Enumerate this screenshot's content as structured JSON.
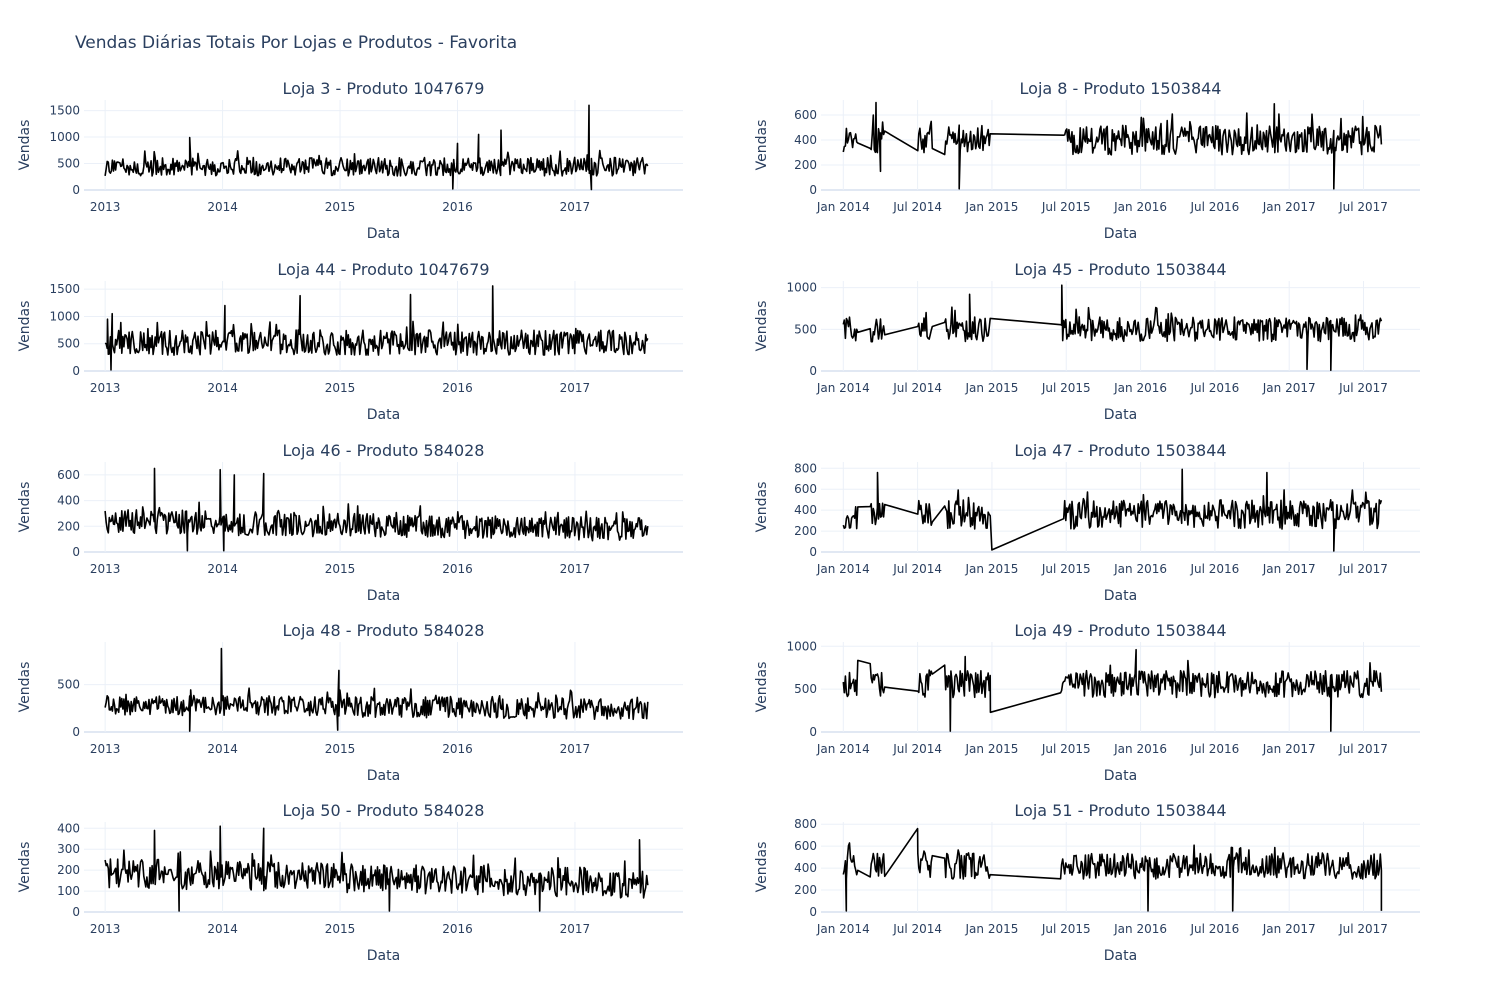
{
  "title": "Vendas Diárias Totais Por Lojas e Produtos - Favorita",
  "colors": {
    "line": "#000000",
    "grid": "#ebf0f8",
    "text": "#2a3f5f",
    "zeroline": "#e1e8f3"
  },
  "chart_data": [
    {
      "type": "line",
      "title": "Loja 3 - Produto 1047679",
      "xlabel": "Data",
      "ylabel": "Vendas",
      "xrange": [
        2012.82,
        2017.92
      ],
      "xticks": [
        2013,
        2014,
        2015,
        2016,
        2017
      ],
      "xticklabels": [
        "2013",
        "2014",
        "2015",
        "2016",
        "2017"
      ],
      "ylim": [
        0,
        1700
      ],
      "yticks": [
        0,
        500,
        1000,
        1500
      ],
      "series": [
        {
          "start": 2013.0,
          "end": 2017.62,
          "base": 440,
          "amp": 175,
          "min": 40,
          "seed": 3,
          "peaks": [
            [
              2017.12,
              1600
            ],
            [
              2016.37,
              1130
            ],
            [
              2016.18,
              1050
            ],
            [
              2013.72,
              990
            ],
            [
              2016.0,
              880
            ],
            [
              2015.96,
              20
            ],
            [
              2017.14,
              10
            ]
          ],
          "gaps": []
        }
      ]
    },
    {
      "type": "line",
      "title": "Loja 8 - Produto 1503844",
      "xlabel": "Data",
      "ylabel": "Vendas",
      "xrange": [
        2013.85,
        2017.88
      ],
      "xticks": [
        2014.0,
        2014.5,
        2015.0,
        2015.5,
        2016.0,
        2016.5,
        2017.0,
        2017.5
      ],
      "xticklabels": [
        "Jan 2014",
        "Jul 2014",
        "Jan 2015",
        "Jul 2015",
        "Jan 2016",
        "Jul 2016",
        "Jan 2017",
        "Jul 2017"
      ],
      "ylim": [
        0,
        720
      ],
      "yticks": [
        0,
        200,
        400,
        600
      ],
      "series": [
        {
          "start": 2014.0,
          "end": 2017.62,
          "base": 400,
          "amp": 120,
          "min": 150,
          "seed": 8,
          "peaks": [
            [
              2014.22,
              700
            ],
            [
              2016.9,
              690
            ],
            [
              2014.78,
              10
            ],
            [
              2017.3,
              10
            ],
            [
              2014.25,
              150
            ]
          ],
          "gaps": [
            [
              2014.1,
              2014.18
            ],
            [
              2014.28,
              2014.5
            ],
            [
              2014.6,
              2014.68
            ],
            [
              2014.99,
              2015.48
            ]
          ]
        }
      ]
    },
    {
      "type": "line",
      "title": "Loja 44 - Produto 1047679",
      "xlabel": "Data",
      "ylabel": "Vendas",
      "xrange": [
        2012.82,
        2017.92
      ],
      "xticks": [
        2013,
        2014,
        2015,
        2016,
        2017
      ],
      "xticklabels": [
        "2013",
        "2014",
        "2015",
        "2016",
        "2017"
      ],
      "ylim": [
        0,
        1650
      ],
      "yticks": [
        0,
        500,
        1000,
        1500
      ],
      "series": [
        {
          "start": 2013.0,
          "end": 2017.62,
          "base": 520,
          "amp": 230,
          "min": 60,
          "seed": 44,
          "peaks": [
            [
              2016.3,
              1560
            ],
            [
              2013.06,
              1050
            ],
            [
              2013.02,
              950
            ],
            [
              2014.02,
              1200
            ],
            [
              2014.66,
              1380
            ],
            [
              2015.6,
              1400
            ],
            [
              2013.05,
              20
            ]
          ],
          "gaps": []
        }
      ]
    },
    {
      "type": "line",
      "title": "Loja 45 - Produto 1503844",
      "xlabel": "Data",
      "ylabel": "Vendas",
      "xrange": [
        2013.85,
        2017.88
      ],
      "xticks": [
        2014.0,
        2014.5,
        2015.0,
        2015.5,
        2016.0,
        2016.5,
        2017.0,
        2017.5
      ],
      "xticklabels": [
        "Jan 2014",
        "Jul 2014",
        "Jan 2015",
        "Jul 2015",
        "Jan 2016",
        "Jul 2016",
        "Jan 2017",
        "Jul 2017"
      ],
      "ylim": [
        0,
        1080
      ],
      "yticks": [
        0,
        500,
        1000
      ],
      "series": [
        {
          "start": 2014.0,
          "end": 2017.62,
          "base": 500,
          "amp": 150,
          "min": 250,
          "seed": 45,
          "peaks": [
            [
              2015.47,
              1030
            ],
            [
              2014.85,
              920
            ],
            [
              2017.28,
              10
            ],
            [
              2017.12,
              20
            ]
          ],
          "gaps": [
            [
              2014.1,
              2014.18
            ],
            [
              2014.28,
              2014.5
            ],
            [
              2014.6,
              2014.68
            ],
            [
              2014.99,
              2015.46
            ]
          ]
        }
      ]
    },
    {
      "type": "line",
      "title": "Loja 46 - Produto 584028",
      "xlabel": "Data",
      "ylabel": "Vendas",
      "xrange": [
        2012.82,
        2017.92
      ],
      "xticks": [
        2013,
        2014,
        2015,
        2016,
        2017
      ],
      "xticklabels": [
        "2013",
        "2014",
        "2015",
        "2016",
        "2017"
      ],
      "ylim": [
        0,
        700
      ],
      "yticks": [
        0,
        200,
        400,
        600
      ],
      "series": [
        {
          "start": 2013.0,
          "end": 2017.62,
          "base": 240,
          "amp": 95,
          "min": 20,
          "seed": 46,
          "peaks": [
            [
              2013.42,
              650
            ],
            [
              2013.98,
              640
            ],
            [
              2014.1,
              600
            ],
            [
              2014.35,
              610
            ],
            [
              2013.7,
              10
            ],
            [
              2014.01,
              10
            ]
          ],
          "gaps": [],
          "trend": -70
        }
      ]
    },
    {
      "type": "line",
      "title": "Loja 47 - Produto 1503844",
      "xlabel": "Data",
      "ylabel": "Vendas",
      "xrange": [
        2013.85,
        2017.88
      ],
      "xticks": [
        2014.0,
        2014.5,
        2015.0,
        2015.5,
        2016.0,
        2016.5,
        2017.0,
        2017.5
      ],
      "xticklabels": [
        "Jan 2014",
        "Jul 2014",
        "Jan 2015",
        "Jul 2015",
        "Jan 2016",
        "Jul 2016",
        "Jan 2017",
        "Jul 2017"
      ],
      "ylim": [
        0,
        860
      ],
      "yticks": [
        0,
        200,
        400,
        600,
        800
      ],
      "series": [
        {
          "start": 2014.0,
          "end": 2017.62,
          "base": 360,
          "amp": 140,
          "min": 120,
          "seed": 47,
          "peaks": [
            [
              2016.28,
              790
            ],
            [
              2014.23,
              760
            ],
            [
              2016.85,
              760
            ],
            [
              2015.0,
              20
            ],
            [
              2017.3,
              10
            ]
          ],
          "gaps": [
            [
              2014.1,
              2014.18
            ],
            [
              2014.28,
              2014.5
            ],
            [
              2014.6,
              2014.68
            ],
            [
              2014.99,
              2015.48
            ]
          ]
        }
      ]
    },
    {
      "type": "line",
      "title": "Loja 48 - Produto 584028",
      "xlabel": "Data",
      "ylabel": "Vendas",
      "xrange": [
        2012.82,
        2017.92
      ],
      "xticks": [
        2013,
        2014,
        2015,
        2016,
        2017
      ],
      "xticklabels": [
        "2013",
        "2014",
        "2015",
        "2016",
        "2017"
      ],
      "ylim": [
        0,
        950
      ],
      "yticks": [
        0,
        500
      ],
      "series": [
        {
          "start": 2013.0,
          "end": 2017.62,
          "base": 290,
          "amp": 110,
          "min": 60,
          "seed": 48,
          "peaks": [
            [
              2013.99,
              880
            ],
            [
              2014.99,
              650
            ],
            [
              2013.72,
              10
            ],
            [
              2014.98,
              20
            ]
          ],
          "gaps": [],
          "trend": -50
        }
      ]
    },
    {
      "type": "line",
      "title": "Loja 49 - Produto 1503844",
      "xlabel": "Data",
      "ylabel": "Vendas",
      "xrange": [
        2013.85,
        2017.88
      ],
      "xticks": [
        2014.0,
        2014.5,
        2015.0,
        2015.5,
        2016.0,
        2016.5,
        2017.0,
        2017.5
      ],
      "xticklabels": [
        "Jan 2014",
        "Jul 2014",
        "Jan 2015",
        "Jul 2015",
        "Jan 2016",
        "Jul 2016",
        "Jan 2017",
        "Jul 2017"
      ],
      "ylim": [
        0,
        1050
      ],
      "yticks": [
        0,
        500,
        1000
      ],
      "series": [
        {
          "start": 2014.0,
          "end": 2017.62,
          "base": 560,
          "amp": 160,
          "min": 220,
          "seed": 49,
          "peaks": [
            [
              2015.97,
              960
            ],
            [
              2014.82,
              880
            ],
            [
              2014.72,
              10
            ],
            [
              2017.28,
              10
            ],
            [
              2014.99,
              230
            ]
          ],
          "gaps": [
            [
              2014.1,
              2014.18
            ],
            [
              2014.28,
              2014.5
            ],
            [
              2014.6,
              2014.68
            ],
            [
              2014.99,
              2015.46
            ]
          ]
        }
      ]
    },
    {
      "type": "line",
      "title": "Loja 50 - Produto 584028",
      "xlabel": "Data",
      "ylabel": "Vendas",
      "xrange": [
        2012.82,
        2017.92
      ],
      "xticks": [
        2013,
        2014,
        2015,
        2016,
        2017
      ],
      "xticklabels": [
        "2013",
        "2014",
        "2015",
        "2016",
        "2017"
      ],
      "ylim": [
        0,
        430
      ],
      "yticks": [
        0,
        100,
        200,
        300,
        400
      ],
      "series": [
        {
          "start": 2013.0,
          "end": 2017.62,
          "base": 185,
          "amp": 70,
          "min": 20,
          "seed": 50,
          "peaks": [
            [
              2013.98,
              410
            ],
            [
              2014.35,
              400
            ],
            [
              2013.42,
              390
            ],
            [
              2017.55,
              345
            ],
            [
              2013.63,
              5
            ],
            [
              2015.42,
              5
            ],
            [
              2016.7,
              5
            ]
          ],
          "gaps": [],
          "trend": -50
        }
      ]
    },
    {
      "type": "line",
      "title": "Loja 51 - Produto 1503844",
      "xlabel": "Data",
      "ylabel": "Vendas",
      "xrange": [
        2013.85,
        2017.88
      ],
      "xticks": [
        2014.0,
        2014.5,
        2015.0,
        2015.5,
        2016.0,
        2016.5,
        2017.0,
        2017.5
      ],
      "xticklabels": [
        "Jan 2014",
        "Jul 2014",
        "Jan 2015",
        "Jul 2015",
        "Jan 2016",
        "Jul 2016",
        "Jan 2017",
        "Jul 2017"
      ],
      "ylim": [
        0,
        820
      ],
      "yticks": [
        0,
        200,
        400,
        600,
        800
      ],
      "series": [
        {
          "start": 2014.0,
          "end": 2017.62,
          "base": 420,
          "amp": 120,
          "min": 150,
          "seed": 51,
          "peaks": [
            [
              2014.5,
              760
            ],
            [
              2014.02,
              10
            ],
            [
              2016.05,
              10
            ],
            [
              2016.62,
              10
            ],
            [
              2017.62,
              10
            ]
          ],
          "gaps": [
            [
              2014.1,
              2014.18
            ],
            [
              2014.28,
              2014.5
            ],
            [
              2014.6,
              2014.68
            ],
            [
              2014.99,
              2015.46
            ]
          ]
        }
      ]
    }
  ]
}
